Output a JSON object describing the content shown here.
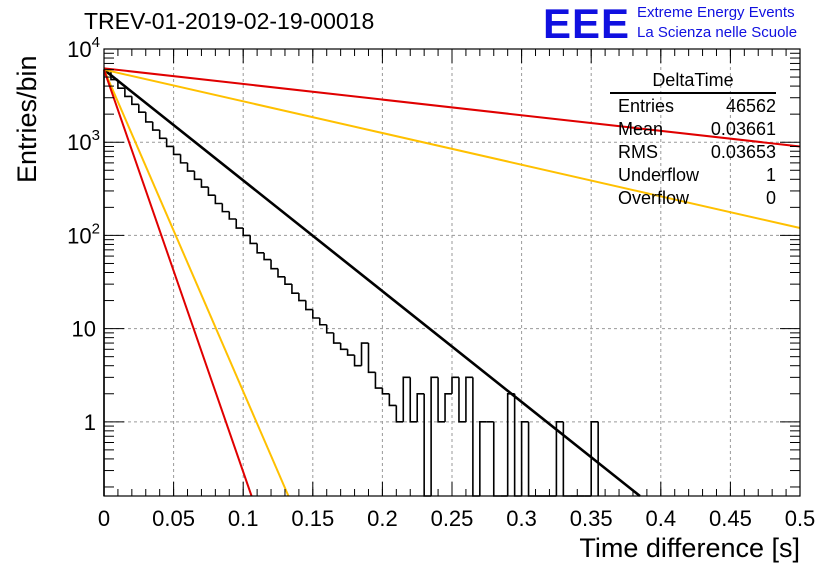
{
  "title": "TREV-01-2019-02-19-00018",
  "logo": {
    "mark": "EEE",
    "line1": "Extreme Energy Events",
    "line2": "La Scienza nelle Scuole"
  },
  "stats_box": {
    "name": "DeltaTime",
    "rows": [
      {
        "label": "Entries",
        "value": "46562"
      },
      {
        "label": "Mean",
        "value": "0.03661"
      },
      {
        "label": "RMS",
        "value": "0.03653"
      },
      {
        "label": "Underflow",
        "value": "1"
      },
      {
        "label": "Overflow",
        "value": "0"
      }
    ]
  },
  "colors": {
    "histogram": "#000000",
    "fit": "#000000",
    "red": "#e00000",
    "yellow": "#ffc000",
    "grid": "#9a9a9a"
  },
  "chart_data": {
    "type": "line",
    "xlabel": "Time difference [s]",
    "ylabel": "Entries/bin",
    "xlim": [
      0,
      0.5
    ],
    "ylim": [
      0.16,
      10000
    ],
    "yscale": "log",
    "grid": true,
    "x_ticks": [
      "0",
      "0.05",
      "0.1",
      "0.15",
      "0.2",
      "0.25",
      "0.3",
      "0.35",
      "0.4",
      "0.45",
      "0.5"
    ],
    "y_ticks": [
      {
        "value": 1,
        "label": "1"
      },
      {
        "value": 10,
        "label": "10"
      },
      {
        "value": 100,
        "label": "10",
        "exp": "2"
      },
      {
        "value": 1000,
        "label": "10",
        "exp": "3"
      },
      {
        "value": 10000,
        "label": "10",
        "exp": "4"
      }
    ],
    "histogram": {
      "bin_width": 0.005,
      "counts": [
        5900,
        4700,
        3800,
        3100,
        2550,
        2100,
        1650,
        1350,
        1100,
        900,
        740,
        600,
        490,
        400,
        330,
        270,
        220,
        180,
        150,
        120,
        100,
        82,
        65,
        55,
        44,
        36,
        30,
        24,
        20,
        16,
        13,
        11,
        9,
        7,
        6,
        5.2,
        4,
        7,
        3.4,
        2.3,
        2,
        1.5,
        1,
        3,
        1,
        2,
        0,
        3,
        1,
        2,
        3,
        1,
        3,
        0,
        1,
        1,
        0,
        0,
        2,
        0,
        1,
        0,
        0,
        0,
        0,
        1,
        0,
        0,
        0,
        0,
        1
      ]
    },
    "series": [
      {
        "color": "black",
        "y0": 6000,
        "x1": 0.385,
        "y1": 0.16
      },
      {
        "color": "red",
        "y0": 6200,
        "x1": 0.5,
        "y1": 900
      },
      {
        "color": "yellow",
        "y0": 6000,
        "x1": 0.5,
        "y1": 120
      },
      {
        "color": "yellow",
        "y0": 6000,
        "x1": 0.1325,
        "y1": 0.16
      },
      {
        "color": "red",
        "y0": 6000,
        "x1": 0.106,
        "y1": 0.16
      }
    ]
  }
}
